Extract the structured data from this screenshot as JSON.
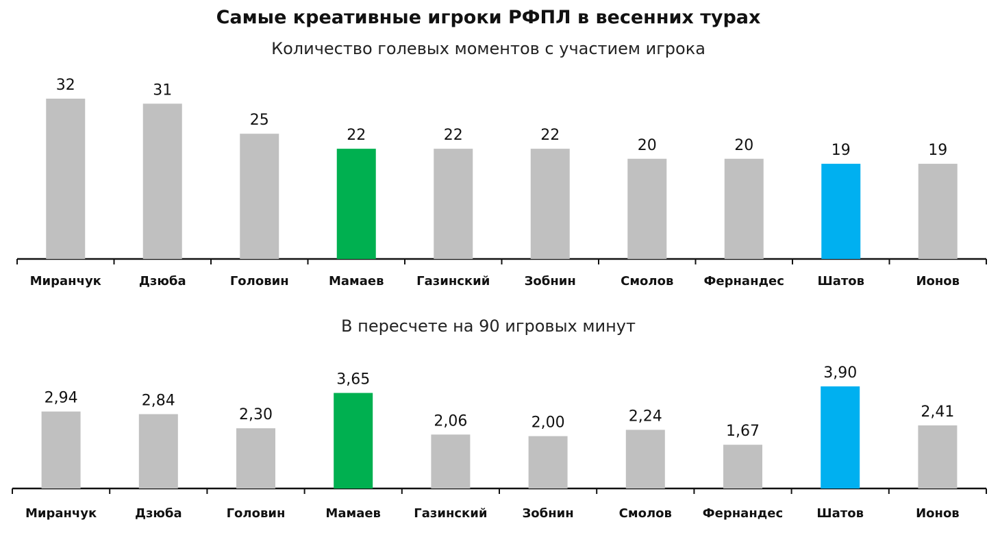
{
  "title": "Самые креативные игроки РФПЛ в весенних турах",
  "colors": {
    "default": "#c0c0c0",
    "highlight_green": "#00b050",
    "highlight_blue": "#00b0f0",
    "axis": "#111111"
  },
  "chart_data": [
    {
      "type": "bar",
      "subtitle": "Количество голевых моментов с участием игрока",
      "categories": [
        "Миранчук",
        "Дзюба",
        "Головин",
        "Мамаев",
        "Газинский",
        "Зобнин",
        "Смолов",
        "Фернандес",
        "Шатов",
        "Ионов"
      ],
      "values": [
        32,
        31,
        25,
        22,
        22,
        22,
        20,
        20,
        19,
        19
      ],
      "value_labels": [
        "32",
        "31",
        "25",
        "22",
        "22",
        "22",
        "20",
        "20",
        "19",
        "19"
      ],
      "highlights": {
        "Мамаев": "#00b050",
        "Шатов": "#00b0f0"
      },
      "ylim": [
        0,
        32
      ],
      "grid": false
    },
    {
      "type": "bar",
      "subtitle": "В пересчете на 90 игровых минут",
      "categories": [
        "Миранчук",
        "Дзюба",
        "Головин",
        "Мамаев",
        "Газинский",
        "Зобнин",
        "Смолов",
        "Фернандес",
        "Шатов",
        "Ионов"
      ],
      "values": [
        2.94,
        2.84,
        2.3,
        3.65,
        2.06,
        2.0,
        2.24,
        1.67,
        3.9,
        2.41
      ],
      "value_labels": [
        "2,94",
        "2,84",
        "2,30",
        "3,65",
        "2,06",
        "2,00",
        "2,24",
        "1,67",
        "3,90",
        "2,41"
      ],
      "highlights": {
        "Мамаев": "#00b050",
        "Шатов": "#00b0f0"
      },
      "ylim": [
        0,
        3.9
      ],
      "grid": false
    }
  ]
}
